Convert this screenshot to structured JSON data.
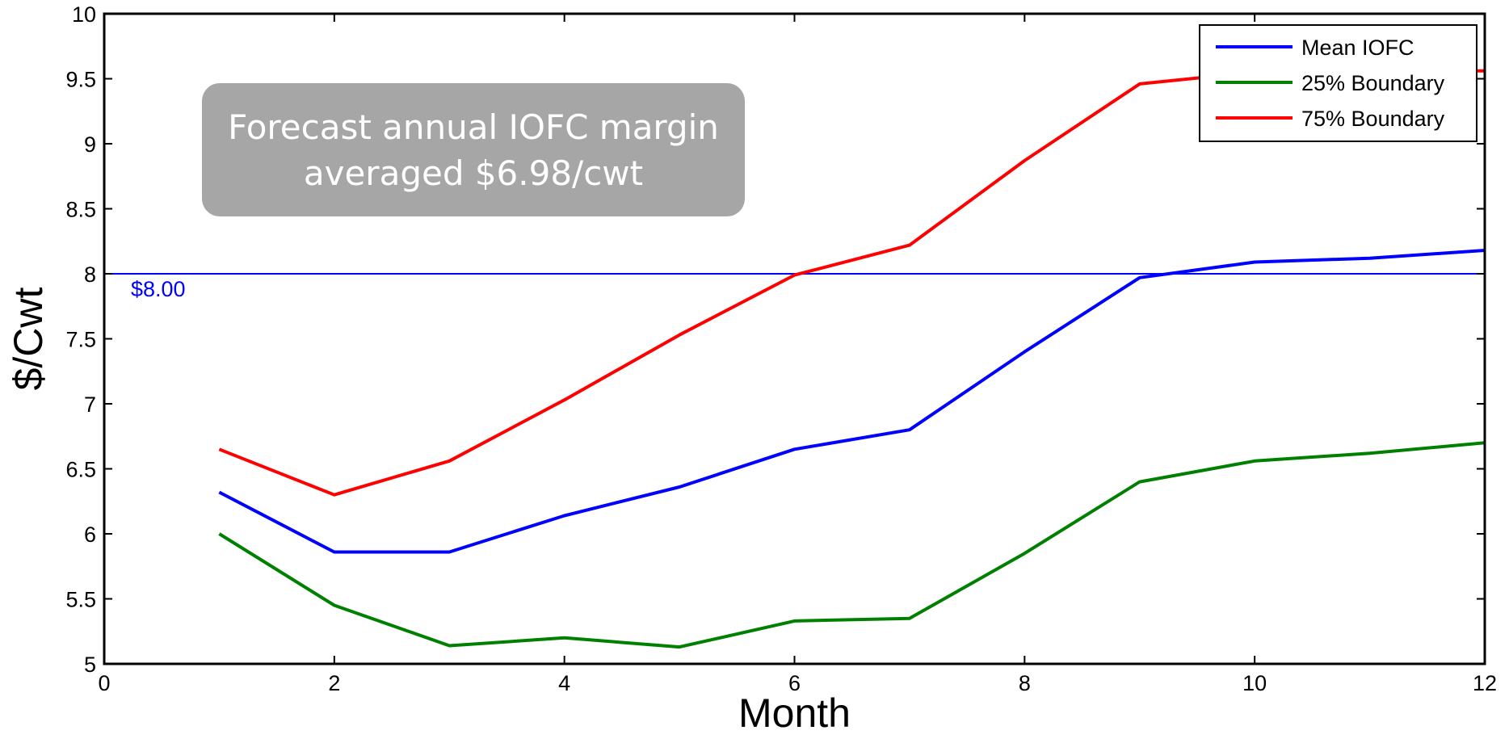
{
  "chart_data": {
    "type": "line",
    "title": "",
    "xlabel": "Month",
    "ylabel": "$/Cwt",
    "xlim": [
      0,
      12
    ],
    "ylim": [
      5,
      10
    ],
    "xticks": [
      0,
      2,
      4,
      6,
      8,
      10,
      12
    ],
    "yticks": [
      5,
      5.5,
      6,
      6.5,
      7,
      7.5,
      8,
      8.5,
      9,
      9.5,
      10
    ],
    "x": [
      1,
      2,
      3,
      4,
      5,
      6,
      7,
      8,
      9,
      10,
      11,
      12
    ],
    "series": [
      {
        "name": "Mean IOFC",
        "color": "#0000ff",
        "values": [
          6.32,
          5.86,
          5.86,
          6.14,
          6.36,
          6.65,
          6.8,
          7.4,
          7.97,
          8.09,
          8.12,
          8.18
        ]
      },
      {
        "name": "25% Boundary",
        "color": "#008000",
        "values": [
          6.0,
          5.45,
          5.14,
          5.2,
          5.13,
          5.33,
          5.35,
          5.85,
          6.4,
          6.56,
          6.62,
          6.7
        ]
      },
      {
        "name": "75% Boundary",
        "color": "#ff0000",
        "values": [
          6.65,
          6.3,
          6.56,
          7.03,
          7.53,
          7.99,
          8.22,
          8.87,
          9.46,
          9.55,
          9.56,
          9.56
        ]
      }
    ],
    "reference_line": {
      "y": 8,
      "label": "$8.00",
      "color": "#0000ff"
    },
    "annotation": {
      "line1": "Forecast annual IOFC margin",
      "line2": "averaged $6.98/cwt"
    },
    "legend": "top-right",
    "grid": false
  }
}
